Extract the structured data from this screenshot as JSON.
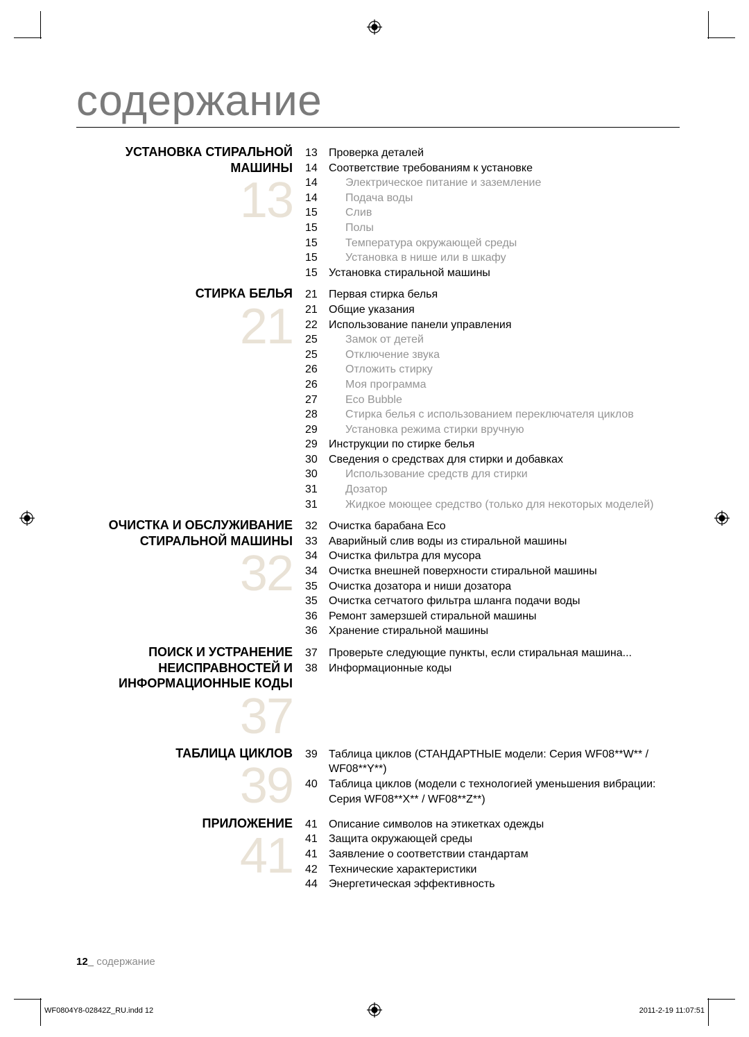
{
  "title": "содержание",
  "big_num_color": "#e9e2d6",
  "text_gray": "#949494",
  "sections": [
    {
      "name": "УСТАНОВКА СТИРАЛЬНОЙ МАШИНЫ",
      "big": "13",
      "items": [
        {
          "pg": "13",
          "txt": "Проверка деталей",
          "sub": false
        },
        {
          "pg": "14",
          "txt": "Соответствие требованиям к установке",
          "sub": false
        },
        {
          "pg": "14",
          "txt": "Электрическое питание и заземление",
          "sub": true
        },
        {
          "pg": "14",
          "txt": "Подача воды",
          "sub": true
        },
        {
          "pg": "15",
          "txt": "Слив",
          "sub": true
        },
        {
          "pg": "15",
          "txt": "Полы",
          "sub": true
        },
        {
          "pg": "15",
          "txt": "Температура окружающей среды",
          "sub": true
        },
        {
          "pg": "15",
          "txt": "Установка в нише или в шкафу",
          "sub": true
        },
        {
          "pg": "15",
          "txt": "Установка стиральной машины",
          "sub": false
        }
      ]
    },
    {
      "name": "СТИРКА БЕЛЬЯ",
      "big": "21",
      "items": [
        {
          "pg": "21",
          "txt": "Первая стирка белья",
          "sub": false
        },
        {
          "pg": "21",
          "txt": "Общие указания",
          "sub": false
        },
        {
          "pg": "22",
          "txt": "Использование панели управления",
          "sub": false
        },
        {
          "pg": "25",
          "txt": "Замок от детей",
          "sub": true
        },
        {
          "pg": "25",
          "txt": "Отключение звука",
          "sub": true
        },
        {
          "pg": "26",
          "txt": "Отложить стирку",
          "sub": true
        },
        {
          "pg": "26",
          "txt": "Моя программа",
          "sub": true
        },
        {
          "pg": "27",
          "txt": "Eco Bubble",
          "sub": true
        },
        {
          "pg": "28",
          "txt": "Стирка белья с использованием переключателя циклов",
          "sub": true
        },
        {
          "pg": "29",
          "txt": "Установка режима стирки вручную",
          "sub": true
        },
        {
          "pg": "29",
          "txt": "Инструкции по стирке белья",
          "sub": false
        },
        {
          "pg": "30",
          "txt": "Сведения о средствах для стирки и добавках",
          "sub": false
        },
        {
          "pg": "30",
          "txt": "Использование средств для стирки",
          "sub": true
        },
        {
          "pg": "31",
          "txt": "Дозатор",
          "sub": true
        },
        {
          "pg": "31",
          "txt": "Жидкое моющее средство (только для некоторых моделей)",
          "sub": true
        }
      ]
    },
    {
      "name": "ОЧИСТКА И ОБСЛУЖИВАНИЕ СТИРАЛЬНОЙ МАШИНЫ",
      "big": "32",
      "items": [
        {
          "pg": "32",
          "txt": "Очистка барабана Eco",
          "sub": false
        },
        {
          "pg": "33",
          "txt": "Аварийный слив воды из стиральной машины",
          "sub": false
        },
        {
          "pg": "34",
          "txt": "Очистка фильтра для мусора",
          "sub": false
        },
        {
          "pg": "34",
          "txt": "Очистка внешней поверхности стиральной машины",
          "sub": false
        },
        {
          "pg": "35",
          "txt": "Очистка дозатора и ниши дозатора",
          "sub": false
        },
        {
          "pg": "35",
          "txt": "Очистка сетчатого фильтра шланга подачи воды",
          "sub": false
        },
        {
          "pg": "36",
          "txt": "Ремонт замерзшей стиральной машины",
          "sub": false
        },
        {
          "pg": "36",
          "txt": "Хранение стиральной машины",
          "sub": false
        }
      ]
    },
    {
      "name": "ПОИСК И УСТРАНЕНИЕ НЕИСПРАВНОСТЕЙ И ИНФОРМАЦИОННЫЕ КОДЫ",
      "big": "37",
      "items": [
        {
          "pg": "37",
          "txt": "Проверьте следующие пункты, если стиральная машина...",
          "sub": false
        },
        {
          "pg": "38",
          "txt": "Информационные коды",
          "sub": false
        }
      ]
    },
    {
      "name": "ТАБЛИЦА ЦИКЛОВ",
      "big": "39",
      "items": [
        {
          "pg": "39",
          "txt": "Таблица циклов (СТАНДАРТНЫЕ модели: Серия WF08**W** / WF08**Y**)",
          "sub": false
        },
        {
          "pg": "40",
          "txt": "Таблица циклов (модели с технологией уменьшения вибрации: Серия WF08**X** / WF08**Z**)",
          "sub": false
        }
      ]
    },
    {
      "name": "ПРИЛОЖЕНИЕ",
      "big": "41",
      "items": [
        {
          "pg": "41",
          "txt": "Описание символов на этикетках одежды",
          "sub": false
        },
        {
          "pg": "41",
          "txt": "Защита окружающей среды",
          "sub": false
        },
        {
          "pg": "41",
          "txt": "Заявление о соответствии стандартам",
          "sub": false
        },
        {
          "pg": "42",
          "txt": "Технические характеристики",
          "sub": false
        },
        {
          "pg": "44",
          "txt": "Энергетическая эффективность",
          "sub": false
        }
      ]
    }
  ],
  "footer_page": "12_",
  "footer_label": " содержание",
  "imprint_left": "WF0804Y8-02842Z_RU.indd   12",
  "imprint_right": "2011-2-19   11:07:51"
}
